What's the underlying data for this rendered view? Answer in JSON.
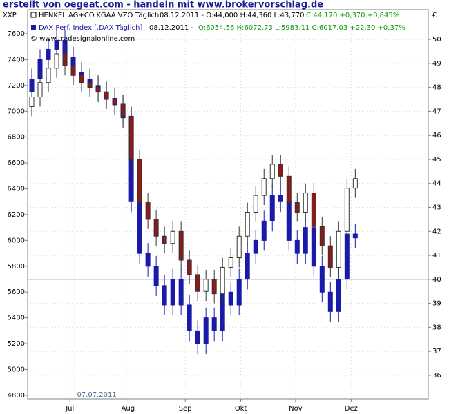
{
  "chart_data": {
    "type": "candlestick",
    "title": "erstellt von oegeat.com - handeln mit www.brokervorschlag.de",
    "corner_left": "XXP",
    "corner_right": "€",
    "copyright": "© www.tradesignalonline.com",
    "legend": [
      {
        "name": "HENKEL AG+CO.KGAA VZO Täglich",
        "info": "08.12.2011 - O:44,000 H:44,360 L:43,770",
        "change": "C:44,170 +0,370 +0,845%"
      },
      {
        "name": "DAX Perf. Index [.DAX Täglich]",
        "info": "08.12.2011 -",
        "change": "O:6054,56 H:6072,73 L:5983,11 C:6017,03 +22,30 +0,37%"
      }
    ],
    "xlim": [
      -0.5,
      47.8
    ],
    "xticks": [
      {
        "value": 4.6,
        "label": "Jul"
      },
      {
        "value": 11.6,
        "label": "Aug"
      },
      {
        "value": 18.5,
        "label": "Sep"
      },
      {
        "value": 25.2,
        "label": "Okt"
      },
      {
        "value": 31.8,
        "label": "Nov"
      },
      {
        "value": 38.5,
        "label": "Dez"
      }
    ],
    "marker_line": {
      "value": 5.2,
      "label": "07.07.2011"
    },
    "ylim": [
      4773,
      7787
    ],
    "yticks": [
      4800,
      5000,
      5200,
      5400,
      5600,
      5800,
      6000,
      6200,
      6400,
      6600,
      6800,
      7000,
      7200,
      7400,
      7600
    ],
    "y2lim": [
      35.02,
      51.24
    ],
    "y2ticks": [
      36,
      37,
      38,
      39,
      40,
      41,
      42,
      43,
      44,
      45,
      46,
      47,
      48,
      49,
      50
    ],
    "y2_reference_line": 40,
    "grid": true,
    "series": [
      {
        "name": "DAX",
        "axis": "y",
        "color": "#1a1aa8",
        "down_color": "#1a1aa8",
        "open": [
          7150,
          7250,
          7400,
          7480,
          7550,
          7420,
          7300,
          7250,
          7200,
          7150,
          7100,
          7050,
          6950,
          6300,
          5900,
          5800,
          5650,
          5500,
          5700,
          5500,
          5300,
          5200,
          5400,
          5300,
          5600,
          5500,
          5700,
          5900,
          6000,
          6150,
          6350,
          6300,
          6000,
          5900,
          6100,
          5800,
          5600,
          5450,
          5700,
          6050
        ],
        "high": [
          7330,
          7480,
          7560,
          7630,
          7630,
          7500,
          7380,
          7330,
          7280,
          7230,
          7180,
          7130,
          7030,
          6380,
          5980,
          5880,
          5730,
          5780,
          5780,
          5580,
          5380,
          5480,
          5480,
          5680,
          5680,
          5780,
          5980,
          6080,
          6230,
          6430,
          6430,
          6380,
          6080,
          6180,
          6180,
          5880,
          5680,
          5780,
          6130,
          6130
        ],
        "low": [
          7070,
          7170,
          7320,
          7400,
          7340,
          7220,
          7170,
          7120,
          7070,
          7020,
          6970,
          6870,
          6220,
          5820,
          5720,
          5570,
          5420,
          5420,
          5420,
          5220,
          5120,
          5120,
          5220,
          5220,
          5420,
          5420,
          5620,
          5820,
          5920,
          6070,
          6220,
          5920,
          5820,
          5820,
          5720,
          5520,
          5370,
          5370,
          5620,
          5940
        ],
        "close": [
          7250,
          7400,
          7480,
          7550,
          7420,
          7300,
          7250,
          7200,
          7150,
          7100,
          7050,
          6950,
          6300,
          5900,
          5800,
          5650,
          5500,
          5700,
          5500,
          5300,
          5200,
          5400,
          5300,
          5600,
          5500,
          5700,
          5900,
          6000,
          6150,
          6350,
          6300,
          6000,
          5900,
          6100,
          5800,
          5600,
          5450,
          5700,
          6050,
          6020
        ]
      },
      {
        "name": "HENKEL",
        "axis": "y2",
        "color": "#ffffff",
        "down_color": "#8b1a1a",
        "open": [
          47.2,
          47.6,
          48.2,
          48.8,
          49.4,
          48.9,
          48.5,
          48.2,
          48.0,
          47.8,
          47.5,
          47.3,
          46.8,
          45.0,
          43.2,
          42.5,
          41.8,
          41.5,
          42.0,
          40.8,
          40.2,
          39.5,
          40.0,
          39.4,
          40.5,
          40.9,
          41.8,
          42.8,
          43.5,
          44.2,
          44.8,
          44.3,
          43.2,
          42.8,
          43.6,
          42.2,
          41.4,
          40.5,
          42.0,
          43.8
        ],
        "high": [
          48.0,
          48.6,
          49.2,
          49.8,
          49.8,
          49.3,
          48.9,
          48.6,
          48.4,
          48.2,
          47.9,
          47.7,
          47.2,
          45.4,
          43.6,
          42.9,
          42.2,
          42.4,
          42.4,
          41.2,
          40.6,
          40.4,
          40.4,
          40.9,
          41.3,
          42.2,
          43.2,
          43.9,
          44.6,
          45.2,
          45.2,
          44.7,
          43.6,
          44.0,
          44.0,
          42.6,
          41.8,
          42.4,
          44.2,
          44.6
        ],
        "low": [
          46.8,
          47.2,
          47.8,
          48.4,
          48.5,
          48.1,
          47.8,
          47.6,
          47.4,
          47.1,
          46.9,
          46.4,
          44.6,
          42.8,
          42.1,
          41.4,
          41.1,
          41.1,
          40.4,
          39.8,
          39.1,
          39.1,
          39.0,
          39.0,
          40.1,
          40.5,
          41.4,
          42.4,
          43.1,
          43.8,
          43.9,
          42.8,
          42.4,
          42.4,
          41.8,
          41.0,
          40.1,
          40.1,
          41.6,
          43.4
        ],
        "close": [
          47.6,
          48.2,
          48.8,
          49.4,
          48.9,
          48.5,
          48.2,
          48.0,
          47.8,
          47.5,
          47.3,
          46.8,
          45.0,
          43.2,
          42.5,
          41.8,
          41.5,
          42.0,
          40.8,
          40.2,
          39.5,
          40.0,
          39.4,
          40.5,
          40.9,
          41.8,
          42.8,
          43.5,
          44.2,
          44.8,
          44.3,
          43.2,
          42.8,
          43.6,
          42.2,
          41.4,
          40.5,
          42.0,
          43.8,
          44.2
        ]
      }
    ]
  }
}
